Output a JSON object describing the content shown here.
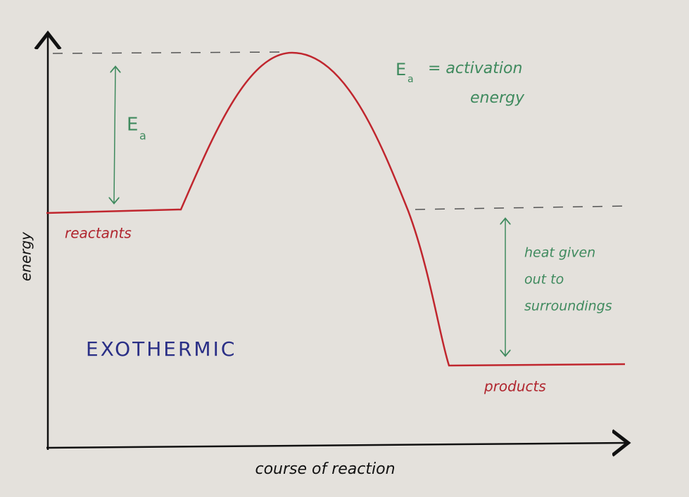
{
  "axes": {
    "y_label": "energy",
    "x_label": "course of reaction"
  },
  "curve": {
    "start_label": "reactants",
    "end_label": "products"
  },
  "title": "EXOTHERMIC",
  "annotations": {
    "ea_symbol": "E",
    "ea_subscript": "a",
    "definition_symbol": "E",
    "definition_subscript": "a",
    "definition_lines": [
      "= activation",
      "energy"
    ],
    "heat_lines": [
      "heat given",
      "out to",
      "surroundings"
    ]
  }
}
